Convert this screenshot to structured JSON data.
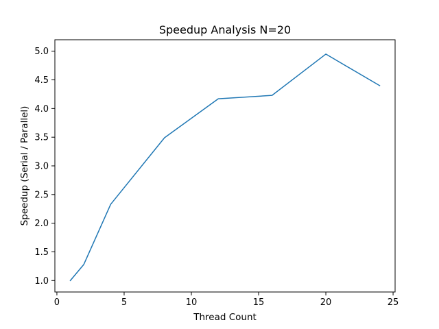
{
  "chart_data": {
    "type": "line",
    "title": "Speedup Analysis N=20",
    "xlabel": "Thread Count",
    "ylabel": "Speedup (Serial / Parallel)",
    "xlim": [
      -0.15,
      25.15
    ],
    "ylim": [
      0.8,
      5.2
    ],
    "xticks": [
      0,
      5,
      10,
      15,
      20,
      25
    ],
    "yticks": [
      1.0,
      1.5,
      2.0,
      2.5,
      3.0,
      3.5,
      4.0,
      4.5,
      5.0
    ],
    "xtick_labels": [
      "0",
      "5",
      "10",
      "15",
      "20",
      "25"
    ],
    "ytick_labels": [
      "1.0",
      "1.5",
      "2.0",
      "2.5",
      "3.0",
      "3.5",
      "4.0",
      "4.5",
      "5.0"
    ],
    "grid": false,
    "series": [
      {
        "color": "#1f77b4",
        "x": [
          1,
          2,
          4,
          8,
          12,
          16,
          20,
          24
        ],
        "y": [
          1.0,
          1.28,
          2.33,
          3.49,
          4.17,
          4.23,
          4.95,
          4.4
        ]
      }
    ]
  }
}
